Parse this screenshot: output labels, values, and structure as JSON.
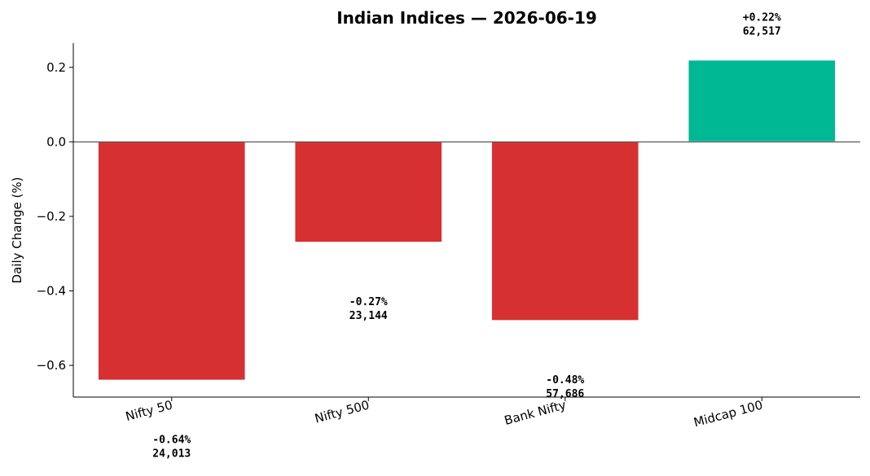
{
  "chart_data": {
    "type": "bar",
    "title": "Indian Indices — 2026-06-19",
    "ylabel": "Daily Change (%)",
    "xlabel": "",
    "categories": [
      "Nifty 50",
      "Nifty 500",
      "Bank Nifty",
      "Midcap 100"
    ],
    "values": [
      -0.64,
      -0.27,
      -0.48,
      0.22
    ],
    "value_labels": [
      "-0.64%",
      "-0.27%",
      "-0.48%",
      "+0.22%"
    ],
    "price_labels": [
      "24,013",
      "23,144",
      "57,686",
      "62,517"
    ],
    "ylim": [
      -0.685,
      0.265
    ],
    "yticks": [
      0.2,
      0.0,
      -0.2,
      -0.4,
      -0.6
    ],
    "ytick_labels": [
      "0.2",
      "0.0",
      "−0.2",
      "−0.4",
      "−0.6"
    ],
    "colors": {
      "positive": "#00b894",
      "negative": "#d63031"
    },
    "grid": false,
    "legend": "none"
  }
}
